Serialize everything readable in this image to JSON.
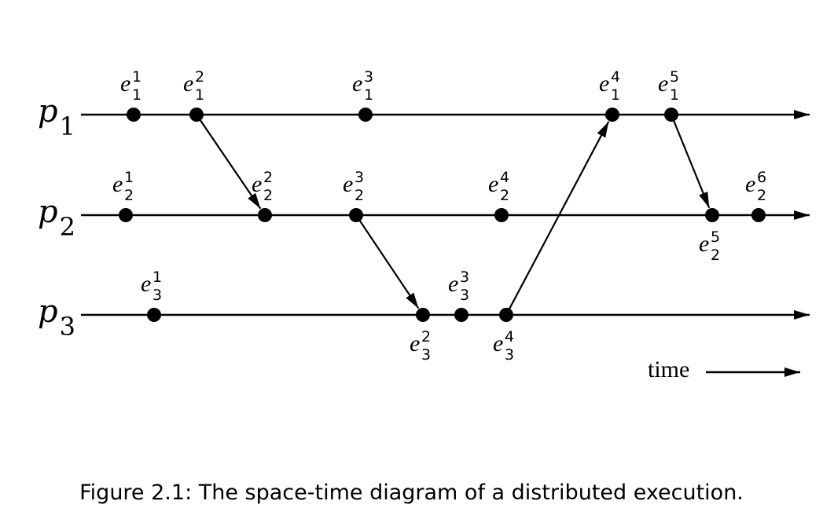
{
  "caption": "Figure 2.1: The space-time diagram of a distributed execution.",
  "time_label": "time",
  "processes": [
    {
      "id": "p1",
      "base": "p",
      "sub": "1"
    },
    {
      "id": "p2",
      "base": "p",
      "sub": "2"
    },
    {
      "id": "p3",
      "base": "p",
      "sub": "3"
    }
  ],
  "events": [
    {
      "id": "e1-1",
      "process": 1,
      "index": 1,
      "base": "e",
      "sub": "1",
      "sup": "1"
    },
    {
      "id": "e1-2",
      "process": 1,
      "index": 2,
      "base": "e",
      "sub": "1",
      "sup": "2"
    },
    {
      "id": "e1-3",
      "process": 1,
      "index": 3,
      "base": "e",
      "sub": "1",
      "sup": "3"
    },
    {
      "id": "e1-4",
      "process": 1,
      "index": 4,
      "base": "e",
      "sub": "1",
      "sup": "4"
    },
    {
      "id": "e1-5",
      "process": 1,
      "index": 5,
      "base": "e",
      "sub": "1",
      "sup": "5"
    },
    {
      "id": "e2-1",
      "process": 2,
      "index": 1,
      "base": "e",
      "sub": "2",
      "sup": "1"
    },
    {
      "id": "e2-2",
      "process": 2,
      "index": 2,
      "base": "e",
      "sub": "2",
      "sup": "2"
    },
    {
      "id": "e2-3",
      "process": 2,
      "index": 3,
      "base": "e",
      "sub": "2",
      "sup": "3"
    },
    {
      "id": "e2-4",
      "process": 2,
      "index": 4,
      "base": "e",
      "sub": "2",
      "sup": "4"
    },
    {
      "id": "e2-5",
      "process": 2,
      "index": 5,
      "base": "e",
      "sub": "2",
      "sup": "5"
    },
    {
      "id": "e2-6",
      "process": 2,
      "index": 6,
      "base": "e",
      "sub": "2",
      "sup": "6"
    },
    {
      "id": "e3-1",
      "process": 3,
      "index": 1,
      "base": "e",
      "sub": "3",
      "sup": "1"
    },
    {
      "id": "e3-2",
      "process": 3,
      "index": 2,
      "base": "e",
      "sub": "3",
      "sup": "2"
    },
    {
      "id": "e3-3",
      "process": 3,
      "index": 3,
      "base": "e",
      "sub": "3",
      "sup": "3"
    },
    {
      "id": "e3-4",
      "process": 3,
      "index": 4,
      "base": "e",
      "sub": "3",
      "sup": "4"
    }
  ],
  "messages": [
    {
      "from": "e1-2",
      "to": "e2-2"
    },
    {
      "from": "e2-3",
      "to": "e3-2"
    },
    {
      "from": "e3-4",
      "to": "e1-4"
    },
    {
      "from": "e1-5",
      "to": "e2-5"
    }
  ]
}
